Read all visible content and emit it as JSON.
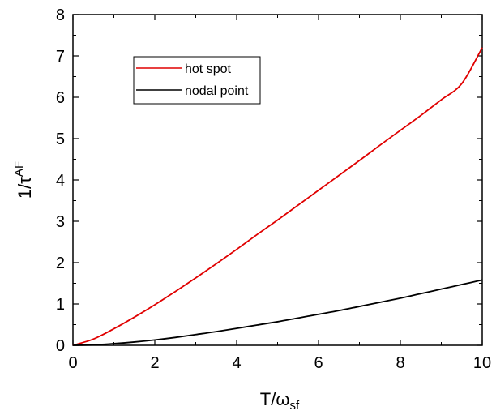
{
  "chart_data": {
    "type": "line",
    "xlim": [
      0,
      10
    ],
    "ylim": [
      0,
      8
    ],
    "x_ticks": [
      "0",
      "2",
      "4",
      "6",
      "8",
      "10"
    ],
    "y_ticks": [
      "0",
      "1",
      "2",
      "3",
      "4",
      "5",
      "6",
      "7",
      "8"
    ],
    "xlabel": {
      "base": "T/ω",
      "sub": "sf"
    },
    "ylabel": {
      "base": "1/τ",
      "sup": "AF"
    },
    "legend_position": "top-left",
    "grid": false,
    "series": [
      {
        "name": "hot spot",
        "color": "#e00000",
        "x": [
          0,
          0.5,
          1,
          1.5,
          2,
          2.5,
          3,
          3.5,
          4,
          4.5,
          5,
          5.5,
          6,
          6.5,
          7,
          7.5,
          8,
          8.5,
          9,
          9.5,
          10
        ],
        "y": [
          0,
          0.15,
          0.4,
          0.68,
          0.98,
          1.3,
          1.63,
          1.97,
          2.32,
          2.68,
          3.03,
          3.39,
          3.75,
          4.11,
          4.47,
          4.84,
          5.2,
          5.56,
          5.94,
          6.33,
          7.2
        ]
      },
      {
        "name": "nodal point",
        "color": "#000000",
        "x": [
          0,
          0.5,
          1,
          1.5,
          2,
          2.5,
          3,
          3.5,
          4,
          4.5,
          5,
          5.5,
          6,
          6.5,
          7,
          7.5,
          8,
          8.5,
          9,
          9.5,
          10
        ],
        "y": [
          0,
          0.01,
          0.04,
          0.08,
          0.13,
          0.19,
          0.26,
          0.33,
          0.41,
          0.49,
          0.57,
          0.66,
          0.75,
          0.84,
          0.94,
          1.04,
          1.14,
          1.25,
          1.36,
          1.47,
          1.58
        ]
      }
    ]
  }
}
